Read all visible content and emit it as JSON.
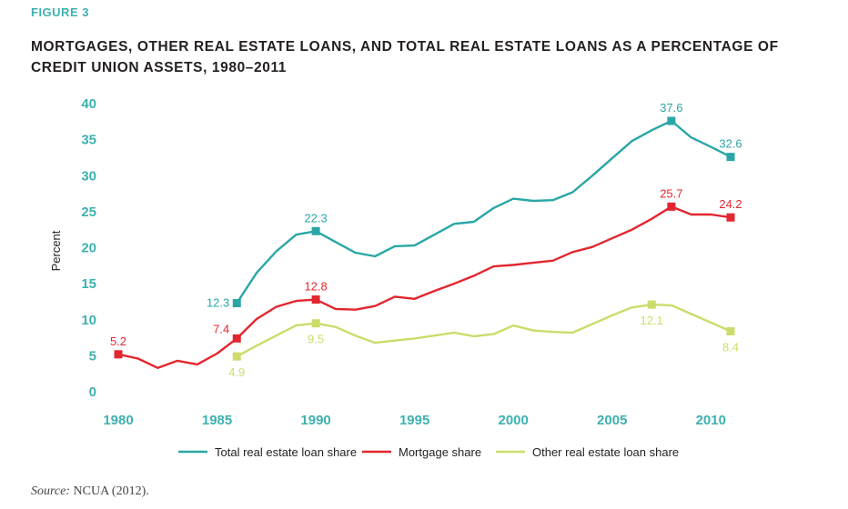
{
  "figure_label": "FIGURE 3",
  "title": "MORTGAGES, OTHER REAL ESTATE LOANS, AND TOTAL REAL ESTATE LOANS AS A PERCENTAGE OF CREDIT UNION ASSETS, 1980–2011",
  "source": {
    "prefix": "Source:",
    "text": "NCUA (2012)."
  },
  "colors": {
    "total": "#2aa6a6",
    "mortgage": "#e3262f",
    "other": "#cddb6a",
    "axis_tick": "#3db1b0"
  },
  "chart_data": {
    "type": "line",
    "title": "MORTGAGES, OTHER REAL ESTATE LOANS, AND TOTAL REAL ESTATE LOANS AS A PERCENTAGE OF CREDIT UNION ASSETS, 1980–2011",
    "xlabel": "",
    "ylabel": "Percent",
    "xlim": [
      1980,
      2011
    ],
    "ylim": [
      0,
      40
    ],
    "xticks": [
      1980,
      1985,
      1990,
      1995,
      2000,
      2005,
      2010
    ],
    "yticks": [
      0,
      5,
      10,
      15,
      20,
      25,
      30,
      35,
      40
    ],
    "grid": false,
    "legend_position": "bottom",
    "series": [
      {
        "name": "Total real estate loan share",
        "color": "#2aa6a6",
        "x": [
          1986,
          1987,
          1988,
          1989,
          1990,
          1991,
          1992,
          1993,
          1994,
          1995,
          1996,
          1997,
          1998,
          1999,
          2000,
          2001,
          2002,
          2003,
          2004,
          2005,
          2006,
          2007,
          2008,
          2009,
          2010,
          2011
        ],
        "y": [
          12.3,
          16.5,
          19.5,
          21.8,
          22.3,
          20.8,
          19.3,
          18.8,
          20.2,
          20.3,
          21.8,
          23.3,
          23.6,
          25.5,
          26.8,
          26.5,
          26.6,
          27.7,
          30.0,
          32.4,
          34.8,
          36.3,
          37.6,
          35.3,
          34.0,
          32.6
        ],
        "labels": {
          "1986": "12.3",
          "1990": "22.3",
          "2008": "37.6",
          "2011": "32.6"
        }
      },
      {
        "name": "Mortgage share",
        "color": "#e3262f",
        "x": [
          1980,
          1981,
          1982,
          1983,
          1984,
          1985,
          1986,
          1987,
          1988,
          1989,
          1990,
          1991,
          1992,
          1993,
          1994,
          1995,
          1996,
          1997,
          1998,
          1999,
          2000,
          2001,
          2002,
          2003,
          2004,
          2005,
          2006,
          2007,
          2008,
          2009,
          2010,
          2011
        ],
        "y": [
          5.2,
          4.6,
          3.3,
          4.3,
          3.8,
          5.3,
          7.4,
          10.1,
          11.8,
          12.6,
          12.8,
          11.5,
          11.4,
          11.9,
          13.2,
          12.9,
          14.0,
          15.0,
          16.1,
          17.4,
          17.6,
          17.9,
          18.2,
          19.4,
          20.1,
          21.3,
          22.5,
          24.0,
          25.7,
          24.6,
          24.6,
          24.2
        ],
        "labels": {
          "1980": "5.2",
          "1986": "7.4",
          "1990": "12.8",
          "2008": "25.7",
          "2011": "24.2"
        }
      },
      {
        "name": "Other real estate loan share",
        "color": "#cddb6a",
        "x": [
          1986,
          1987,
          1988,
          1989,
          1990,
          1991,
          1992,
          1993,
          1994,
          1995,
          1996,
          1997,
          1998,
          1999,
          2000,
          2001,
          2002,
          2003,
          2004,
          2005,
          2006,
          2007,
          2008,
          2009,
          2010,
          2011
        ],
        "y": [
          4.9,
          6.4,
          7.8,
          9.2,
          9.5,
          9.0,
          7.8,
          6.8,
          7.1,
          7.4,
          7.8,
          8.2,
          7.7,
          8.0,
          9.2,
          8.5,
          8.3,
          8.2,
          9.4,
          10.6,
          11.7,
          12.1,
          12.0,
          10.8,
          9.6,
          8.4
        ],
        "labels": {
          "1986": "4.9",
          "1990": "9.5",
          "2007": "12.1",
          "2011": "8.4"
        }
      }
    ]
  }
}
